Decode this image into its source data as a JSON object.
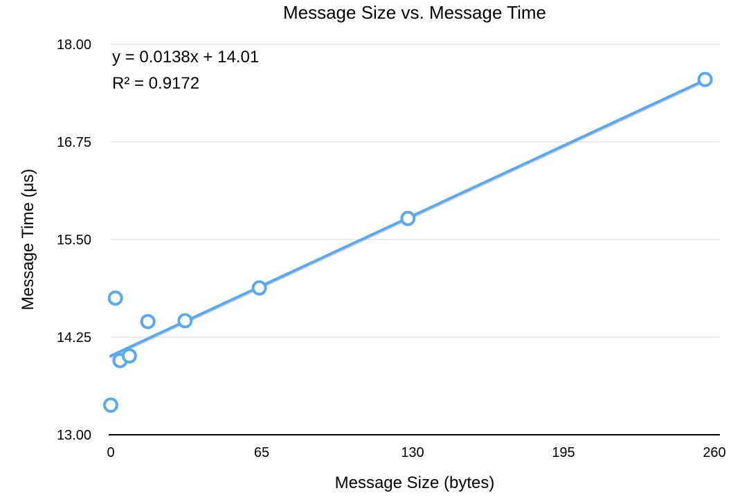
{
  "chart_data": {
    "type": "scatter",
    "title": "Message Size vs. Message Time",
    "xlabel": "Message Size (bytes)",
    "ylabel": "Message Time (μs)",
    "xlim": [
      0,
      260
    ],
    "ylim": [
      13.0,
      18.0
    ],
    "x_ticks": [
      "0",
      "65",
      "130",
      "195",
      "260"
    ],
    "y_ticks": [
      "13.00",
      "14.25",
      "15.50",
      "16.75",
      "18.00"
    ],
    "grid": "horizontal",
    "series": [
      {
        "points": [
          {
            "x": 0,
            "y": 13.38
          },
          {
            "x": 2,
            "y": 14.75
          },
          {
            "x": 4,
            "y": 13.95
          },
          {
            "x": 8,
            "y": 14.01
          },
          {
            "x": 16,
            "y": 14.45
          },
          {
            "x": 32,
            "y": 14.46
          },
          {
            "x": 64,
            "y": 14.88
          },
          {
            "x": 128,
            "y": 15.77
          },
          {
            "x": 256,
            "y": 17.55
          }
        ]
      }
    ],
    "trendline": {
      "type": "linear",
      "slope": 0.0138,
      "intercept": 14.01,
      "equation": "y = 0.0138x + 14.01",
      "r_squared": "R² = 0.9172"
    },
    "colors": {
      "series": "#5aa9ef",
      "grid": "#d9d9d9",
      "axis": "#000000"
    }
  }
}
